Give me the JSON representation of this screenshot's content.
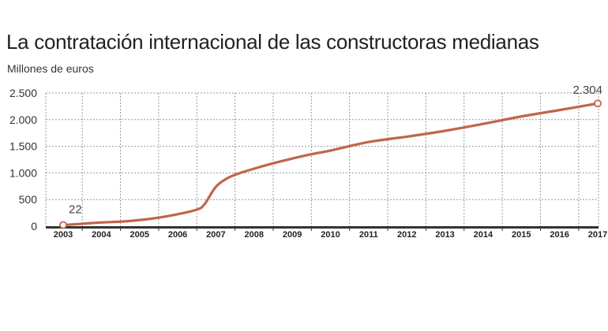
{
  "chart_data": {
    "type": "line",
    "title": "La contratación internacional de las constructoras medianas",
    "ylabel": "Millones de euros",
    "xlabel": "",
    "x_tick_labels": [
      "2003",
      "2004",
      "2005",
      "2006",
      "2007",
      "2008",
      "2009",
      "2010",
      "2011",
      "2012",
      "2013",
      "2014",
      "2015",
      "2016",
      "2017"
    ],
    "y_tick_labels": [
      "0",
      "500",
      "1.000",
      "1.500",
      "2.000",
      "2.500"
    ],
    "y_ticks": [
      0,
      500,
      1000,
      1500,
      2000,
      2500
    ],
    "ylim": [
      0,
      2500
    ],
    "xlim": [
      2003,
      2017
    ],
    "grid": true,
    "color": "#c0654a",
    "series": [
      {
        "x": [
          2003,
          2003.5,
          2004,
          2004.5,
          2005,
          2005.5,
          2006,
          2006.5,
          2006.7,
          2007,
          2007.3,
          2007.6,
          2008,
          2008.5,
          2009,
          2009.5,
          2010,
          2011,
          2012,
          2013,
          2014,
          2015,
          2016,
          2017
        ],
        "values": [
          22,
          45,
          70,
          85,
          115,
          160,
          225,
          310,
          410,
          740,
          900,
          990,
          1080,
          1180,
          1270,
          1350,
          1420,
          1580,
          1680,
          1790,
          1920,
          2060,
          2180,
          2304
        ]
      }
    ],
    "data_labels": [
      {
        "x": 2003,
        "value": 22,
        "text": "22"
      },
      {
        "x": 2017,
        "value": 2304,
        "text": "2.304"
      }
    ]
  }
}
